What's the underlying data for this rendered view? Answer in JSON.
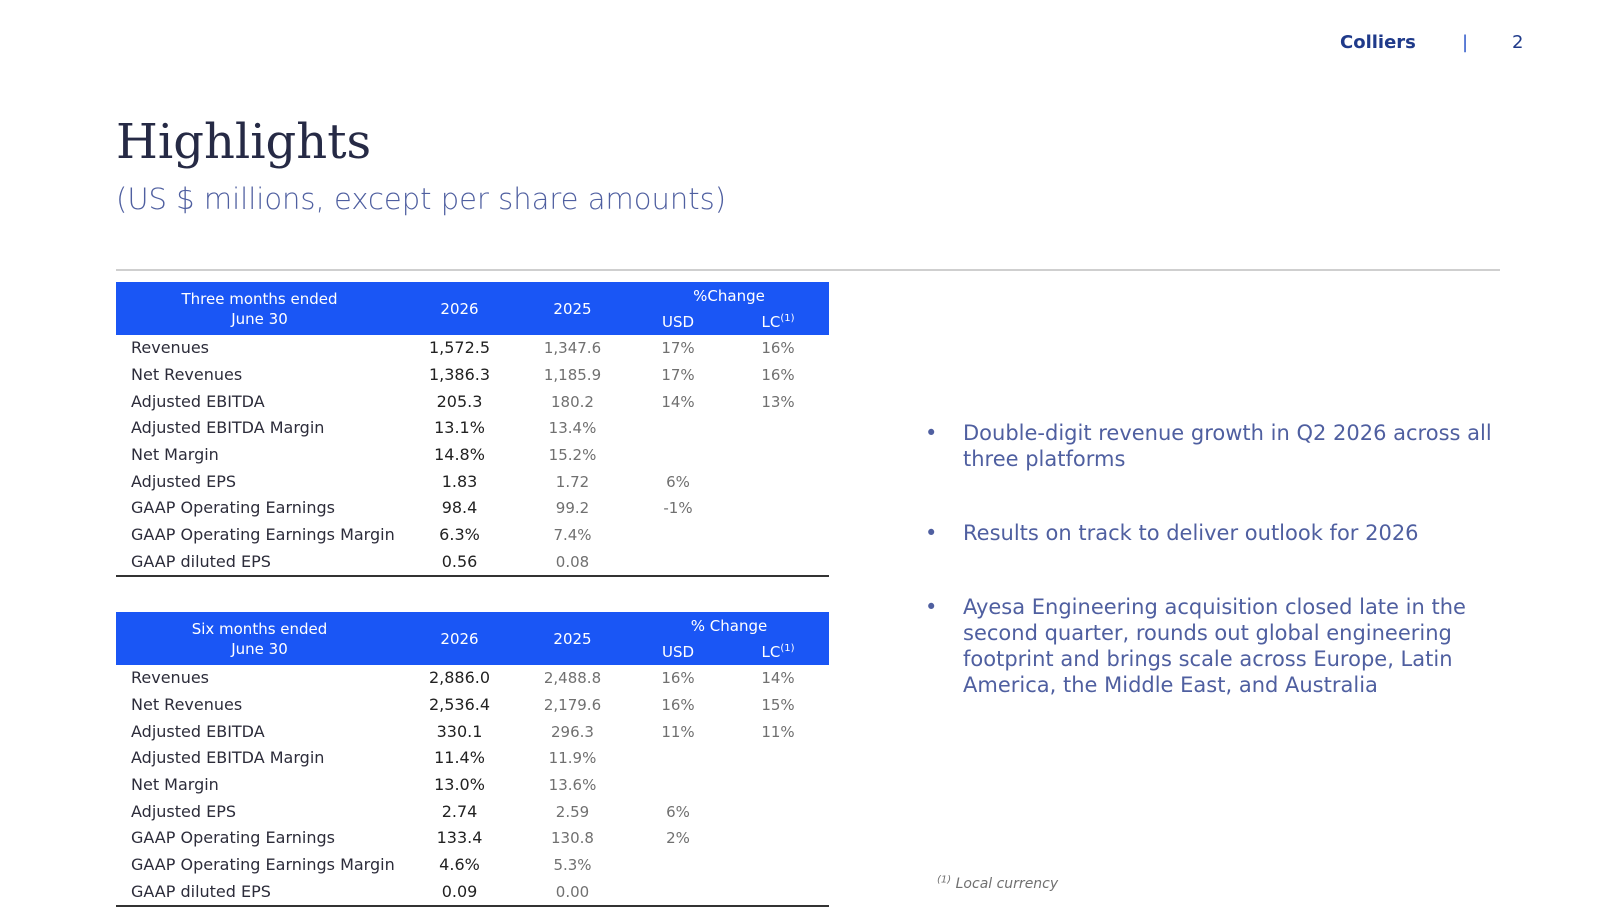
{
  "header": {
    "brand": "Colliers",
    "separator": "|",
    "page_number": "2"
  },
  "title": "Highlights",
  "subtitle": "(US $ millions, except per share amounts)",
  "table_quarter": {
    "period": "Three months ended\nJune 30",
    "col_2026": "2026",
    "col_2025": "2025",
    "change_label": "%Change",
    "usd_label": "USD",
    "lc_label": "LC",
    "lc_marker": "(1)",
    "rows": [
      {
        "label": "Revenues",
        "v2026": "1,572.5",
        "v2025": "1,347.6",
        "usd": "17%",
        "lc": "16%"
      },
      {
        "label": "Net Revenues",
        "v2026": "1,386.3",
        "v2025": "1,185.9",
        "usd": "17%",
        "lc": "16%"
      },
      {
        "label": "Adjusted EBITDA",
        "v2026": "205.3",
        "v2025": "180.2",
        "usd": "14%",
        "lc": "13%"
      },
      {
        "label": "Adjusted EBITDA Margin",
        "v2026": "13.1%",
        "v2025": "13.4%",
        "usd": "",
        "lc": ""
      },
      {
        "label": "Net Margin",
        "v2026": "14.8%",
        "v2025": "15.2%",
        "usd": "",
        "lc": ""
      },
      {
        "label": "Adjusted EPS",
        "v2026": "1.83",
        "v2025": "1.72",
        "usd": "6%",
        "lc": ""
      },
      {
        "label": "GAAP Operating Earnings",
        "v2026": "98.4",
        "v2025": "99.2",
        "usd": "-1%",
        "lc": ""
      },
      {
        "label": "GAAP Operating Earnings Margin",
        "v2026": "6.3%",
        "v2025": "7.4%",
        "usd": "",
        "lc": ""
      },
      {
        "label": "GAAP diluted EPS",
        "v2026": "0.56",
        "v2025": "0.08",
        "usd": "",
        "lc": ""
      }
    ]
  },
  "table_half": {
    "period": "Six months ended\nJune 30",
    "col_2026": "2026",
    "col_2025": "2025",
    "change_label": "% Change",
    "usd_label": "USD",
    "lc_label": "LC",
    "lc_marker": "(1)",
    "rows": [
      {
        "label": "Revenues",
        "v2026": "2,886.0",
        "v2025": "2,488.8",
        "usd": "16%",
        "lc": "14%"
      },
      {
        "label": "Net Revenues",
        "v2026": "2,536.4",
        "v2025": "2,179.6",
        "usd": "16%",
        "lc": "15%"
      },
      {
        "label": "Adjusted EBITDA",
        "v2026": "330.1",
        "v2025": "296.3",
        "usd": "11%",
        "lc": "11%"
      },
      {
        "label": "Adjusted EBITDA Margin",
        "v2026": "11.4%",
        "v2025": "11.9%",
        "usd": "",
        "lc": ""
      },
      {
        "label": "Net Margin",
        "v2026": "13.0%",
        "v2025": "13.6%",
        "usd": "",
        "lc": ""
      },
      {
        "label": "Adjusted EPS",
        "v2026": "2.74",
        "v2025": "2.59",
        "usd": "6%",
        "lc": ""
      },
      {
        "label": "GAAP Operating Earnings",
        "v2026": "133.4",
        "v2025": "130.8",
        "usd": "2%",
        "lc": ""
      },
      {
        "label": "GAAP Operating Earnings Margin",
        "v2026": "4.6%",
        "v2025": "5.3%",
        "usd": "",
        "lc": ""
      },
      {
        "label": "GAAP diluted EPS",
        "v2026": "0.09",
        "v2025": "0.00",
        "usd": "",
        "lc": ""
      }
    ]
  },
  "bullets": [
    "Double-digit revenue growth in Q2 2026 across all three platforms",
    "Results on track to deliver outlook for 2026",
    "Ayesa Engineering acquisition closed late in the second quarter, rounds out global engineering footprint and brings scale across Europe, Latin America, the Middle East, and Australia"
  ],
  "bullet_marker": "•",
  "footnote": {
    "marker": "(1)",
    "text": "Local currency"
  },
  "colors": {
    "header_fill": "#1a56f5",
    "brand": "#1f3a8a",
    "accent_text": "#4f5fa0"
  }
}
